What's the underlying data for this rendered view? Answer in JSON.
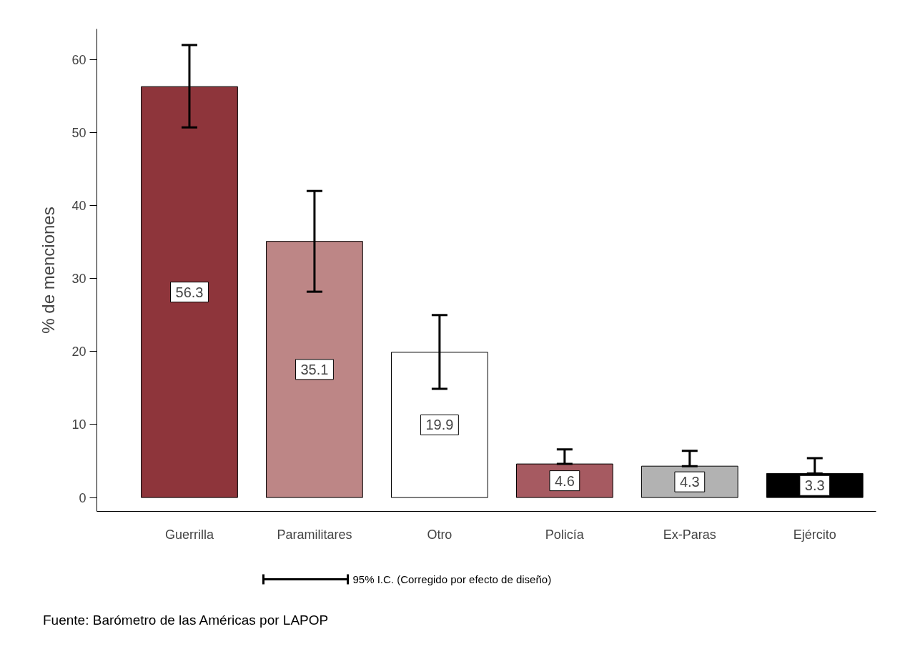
{
  "chart_data": {
    "type": "bar",
    "categories": [
      "Guerrilla",
      "Paramilitares",
      "Otro",
      "Policía",
      "Ex-Paras",
      "Ejército"
    ],
    "values": [
      56.3,
      35.1,
      19.9,
      4.6,
      4.3,
      3.3
    ],
    "colors": [
      "#8e353b",
      "#bd8686",
      "#ffffff",
      "#a65a61",
      "#b2b2b2",
      "#000000"
    ],
    "errors": [
      [
        50.7,
        62.0
      ],
      [
        28.2,
        42.0
      ],
      [
        14.9,
        25.0
      ],
      [
        4.6,
        6.6
      ],
      [
        4.3,
        6.4
      ],
      [
        3.3,
        5.4
      ]
    ],
    "data_labels": true,
    "ylabel": "% de menciones",
    "ylim": [
      -1.9,
      64.2
    ],
    "yticks": [
      0,
      10,
      20,
      30,
      40,
      50,
      60
    ],
    "grid": false,
    "annotations": [
      "95% I.C. (Corregido por efecto de diseño)",
      "Fuente: Barómetro de las Américas por LAPOP"
    ]
  }
}
